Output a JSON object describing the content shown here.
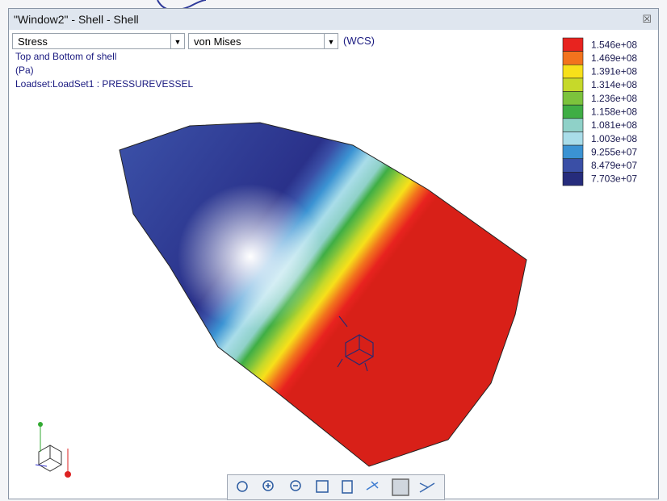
{
  "window": {
    "title": "\"Window2\" - Shell - Shell"
  },
  "controls": {
    "quantity": "Stress",
    "component": "von Mises",
    "frame": "(WCS)"
  },
  "info": {
    "location": "Top and Bottom of shell",
    "units": "(Pa)",
    "loadset": "Loadset:LoadSet1 :  PRESSUREVESSEL"
  },
  "legend": [
    {
      "label": "1.546e+08",
      "color": "#e8231f"
    },
    {
      "label": "1.469e+08",
      "color": "#f2731d"
    },
    {
      "label": "1.391e+08",
      "color": "#f7e01a"
    },
    {
      "label": "1.314e+08",
      "color": "#c6d92a"
    },
    {
      "label": "1.236e+08",
      "color": "#7cc33c"
    },
    {
      "label": "1.158e+08",
      "color": "#3fae45"
    },
    {
      "label": "1.081e+08",
      "color": "#8fd1c8"
    },
    {
      "label": "1.003e+08",
      "color": "#a9dde9"
    },
    {
      "label": "9.255e+07",
      "color": "#3b93d3"
    },
    {
      "label": "8.479e+07",
      "color": "#3a4fa6"
    },
    {
      "label": "7.703e+07",
      "color": "#262c7c"
    }
  ]
}
